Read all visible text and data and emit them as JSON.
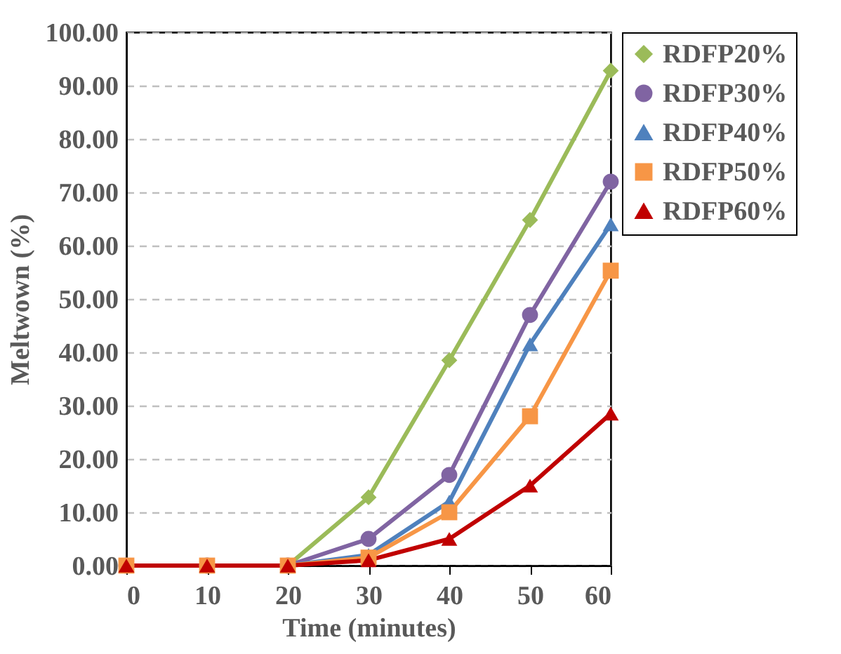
{
  "chart_data": {
    "type": "line",
    "xlabel": "Time (minutes)",
    "ylabel": "Meltwown (%)",
    "x": [
      0,
      10,
      20,
      30,
      40,
      50,
      60
    ],
    "series": [
      {
        "name": "RDFP20%",
        "color": "#9bbb59",
        "marker": "diamond",
        "values": [
          0,
          0,
          0,
          12.8,
          38.5,
          64.8,
          92.8
        ]
      },
      {
        "name": "RDFP30%",
        "color": "#8064a2",
        "marker": "circle",
        "values": [
          0,
          0,
          0,
          5,
          17,
          47,
          72
        ]
      },
      {
        "name": "RDFP40%",
        "color": "#4f81bd",
        "marker": "triangle",
        "values": [
          0,
          0,
          0,
          2,
          12,
          41.5,
          64
        ]
      },
      {
        "name": "RDFP50%",
        "color": "#f79646",
        "marker": "square",
        "values": [
          0,
          0,
          0,
          1.5,
          10,
          28,
          55.3
        ]
      },
      {
        "name": "RDFP60%",
        "color": "#c00000",
        "marker": "triangle",
        "values": [
          0,
          0,
          0,
          1,
          5,
          15,
          28.5
        ]
      }
    ],
    "xlim": [
      0,
      60
    ],
    "xticks": [
      0,
      10,
      20,
      30,
      40,
      50,
      60
    ],
    "ylim": [
      0,
      100
    ],
    "yticks": [
      {
        "value": 0,
        "label": "0.00"
      },
      {
        "value": 10,
        "label": "10.00"
      },
      {
        "value": 20,
        "label": "20.00"
      },
      {
        "value": 30,
        "label": "30.00"
      },
      {
        "value": 40,
        "label": "40.00"
      },
      {
        "value": 50,
        "label": "50.00"
      },
      {
        "value": 60,
        "label": "60.00"
      },
      {
        "value": 70,
        "label": "70.00"
      },
      {
        "value": 80,
        "label": "80.00"
      },
      {
        "value": 90,
        "label": "90.00"
      },
      {
        "value": 100,
        "label": "100.00"
      }
    ],
    "grid": "y",
    "legend": "right",
    "line_style": "solid"
  }
}
